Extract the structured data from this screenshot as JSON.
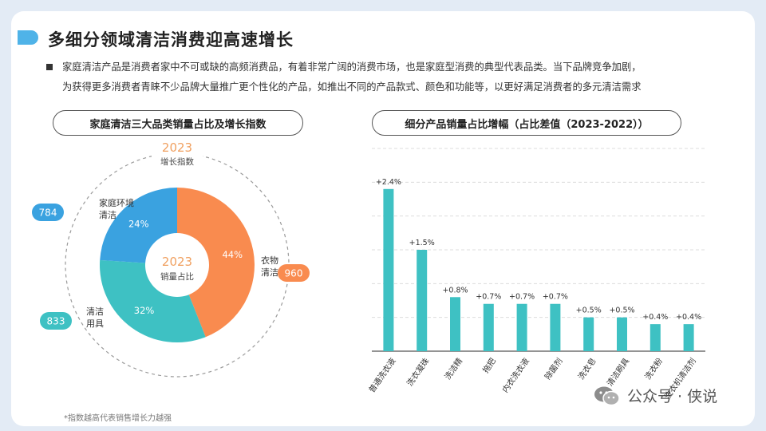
{
  "title": "多细分领域清洁消费迎高速增长",
  "intro": {
    "line1": "家庭清洁产品是消费者家中不可或缺的高频消费品，有着非常广阔的消费市场，也是家庭型消费的典型代表品类。当下品牌竞争加剧，",
    "line2": "为获得更多消费者青睐不少品牌大量推广更个性化的产品，如推出不同的产品款式、颜色和功能等，以更好满足消费者的多元清洁需求"
  },
  "footnote": "*指数越高代表销售增长力越强",
  "watermark": "公众号 · 侠说",
  "colors": {
    "accent": "#4fb3e8",
    "teal": "#3ec1c3",
    "orange": "#f98b4f",
    "blue": "#3aa2e0"
  },
  "chart_data": [
    {
      "type": "pie",
      "title": "家庭清洁三大品类销量占比及增长指数",
      "outer_label": {
        "year": "2023",
        "text": "增长指数"
      },
      "center_label": {
        "year": "2023",
        "text": "销量占比"
      },
      "slices": [
        {
          "name_lines": [
            "衣物",
            "清洁"
          ],
          "value": 44,
          "label": "44%",
          "index": 960,
          "color": "#f98b4f"
        },
        {
          "name_lines": [
            "清洁",
            "用具"
          ],
          "value": 32,
          "label": "32%",
          "index": 833,
          "color": "#3ec1c3"
        },
        {
          "name_lines": [
            "家庭环境",
            "清洁"
          ],
          "value": 24,
          "label": "24%",
          "index": 784,
          "color": "#3aa2e0"
        }
      ]
    },
    {
      "type": "bar",
      "title": "细分产品销量占比增幅（占比差值（2023-2022））",
      "categories": [
        "普通洗衣液",
        "洗衣凝珠",
        "洗洁精",
        "拖把",
        "内衣洗衣液",
        "除菌剂",
        "洗衣皂",
        "清洁刷具",
        "洗衣粉",
        "洗衣机清洁剂"
      ],
      "values": [
        2.4,
        1.5,
        0.8,
        0.7,
        0.7,
        0.7,
        0.5,
        0.5,
        0.4,
        0.4
      ],
      "data_labels": [
        "+2.4%",
        "+1.5%",
        "+0.8%",
        "+0.7%",
        "+0.7%",
        "+0.7%",
        "+0.5%",
        "+0.5%",
        "+0.4%",
        "+0.4%"
      ],
      "ylim": [
        0,
        3
      ],
      "grid": true,
      "color": "#3ec1c3"
    }
  ]
}
